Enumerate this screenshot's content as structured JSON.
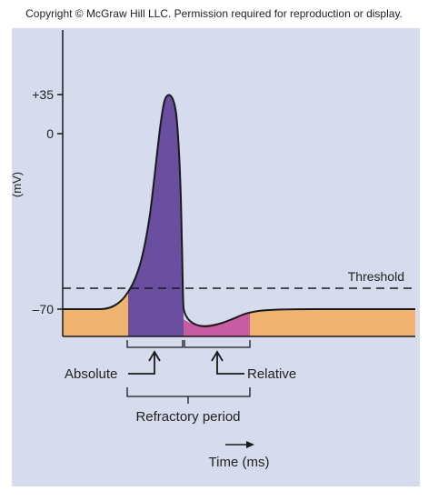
{
  "copyright": "Copyright © McGraw Hill LLC. Permission required for reproduction or display.",
  "diagram": {
    "y_axis_unit": "(mV)",
    "y_ticks": [
      "+35",
      "0",
      "–70"
    ],
    "threshold_label": "Threshold",
    "absolute_label": "Absolute",
    "relative_label": "Relative",
    "refractory_label": "Refractory period",
    "time_label": "Time (ms)",
    "colors": {
      "background": "#d6dbee",
      "resting_fill": "#efb36f",
      "absolute_fill": "#6a4fa0",
      "relative_fill": "#c85ca2",
      "line": "#1a1a1a"
    }
  }
}
